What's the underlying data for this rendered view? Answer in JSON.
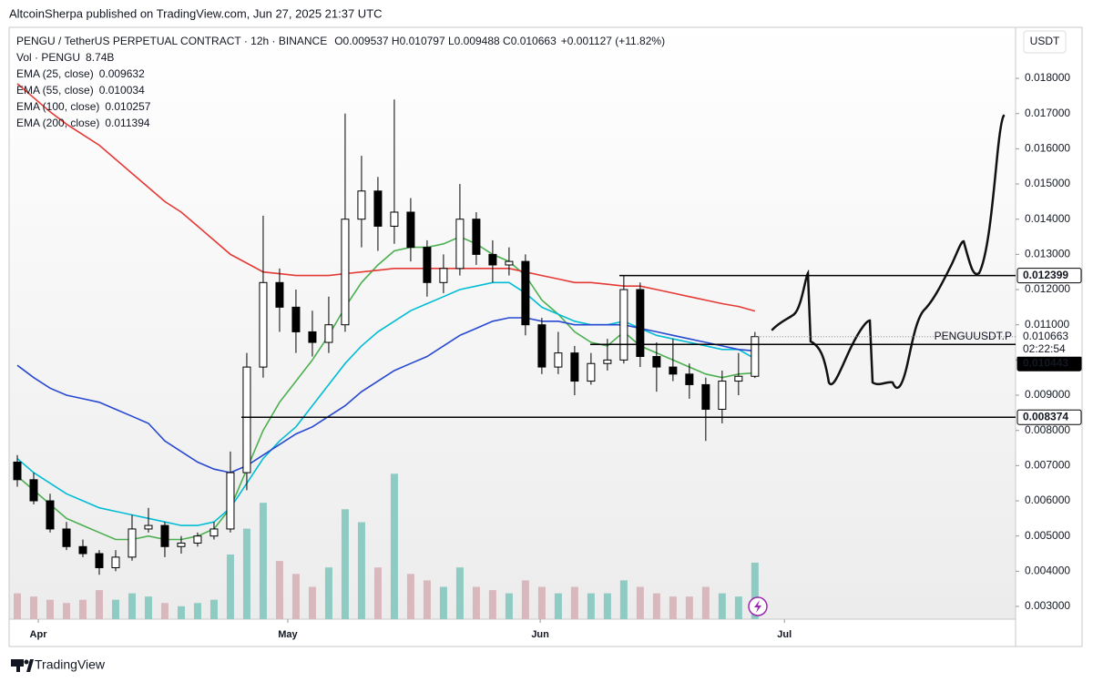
{
  "header": "AltcoinSherpa published on TradingView.com, Jun 27, 2025 21:37 UTC",
  "footer": "TradingView",
  "chart_data": {
    "type": "candlestick",
    "symbol_line": "PENGU / TetherUS PERPETUAL CONTRACT · 12h · BINANCE",
    "ohlc_line": "O0.009537 H0.010797 L0.009488 C0.010663",
    "change_line": "+0.001127 (+11.82%)",
    "volume_name": "Vol · PENGU",
    "volume_label": "8.74B",
    "currency": "USDT",
    "up_color": "#ffffff",
    "down_color": "#000000",
    "volume_up_color": "#8ecbc3",
    "volume_down_color": "#d9b8bd",
    "categories": [
      null,
      null,
      null,
      null,
      null,
      null,
      null,
      null,
      null,
      null,
      null,
      null,
      null,
      null,
      null,
      null,
      null,
      null,
      null,
      null,
      null,
      null,
      null,
      null,
      null,
      null,
      null,
      null,
      null,
      null,
      null,
      null,
      null,
      null,
      null,
      null,
      null,
      null,
      null,
      null,
      null,
      null,
      null,
      null,
      null,
      null
    ],
    "open": [
      0.0071,
      0.0066,
      0.006,
      0.0052,
      0.0047,
      0.0045,
      0.0041,
      0.0044,
      0.0052,
      0.0053,
      0.0047,
      0.0048,
      0.005,
      0.0052,
      0.0068,
      0.0098,
      0.0122,
      0.0115,
      0.0108,
      0.0105,
      0.011,
      0.014,
      0.0148,
      0.0138,
      0.0142,
      0.0132,
      0.0122,
      0.0126,
      0.014,
      0.013,
      0.0127,
      0.0128,
      0.011,
      0.0098,
      0.0102,
      0.0094,
      0.0099,
      0.01,
      0.012,
      0.0101,
      0.0098,
      0.0096,
      0.0093,
      0.0086,
      0.0094,
      0.009537
    ],
    "high": [
      0.0073,
      0.0068,
      0.0062,
      0.0054,
      0.0049,
      0.0046,
      0.0046,
      0.0056,
      0.0058,
      0.0054,
      0.005,
      0.0051,
      0.0054,
      0.0074,
      0.0102,
      0.0141,
      0.0126,
      0.012,
      0.0114,
      0.0118,
      0.017,
      0.0158,
      0.0152,
      0.0174,
      0.0146,
      0.0134,
      0.013,
      0.015,
      0.0142,
      0.0134,
      0.0132,
      0.013,
      0.0112,
      0.0108,
      0.0104,
      0.0102,
      0.0106,
      0.0124,
      0.0122,
      0.0105,
      0.0106,
      0.0099,
      0.0095,
      0.0097,
      0.0102,
      0.010797
    ],
    "low": [
      0.0064,
      0.0059,
      0.0051,
      0.0046,
      0.0044,
      0.0039,
      0.004,
      0.0043,
      0.0051,
      0.0044,
      0.0045,
      0.0047,
      0.0049,
      0.0051,
      0.0063,
      0.0095,
      0.0108,
      0.0102,
      0.0101,
      0.0102,
      0.0108,
      0.0132,
      0.0131,
      0.0133,
      0.0128,
      0.0118,
      0.0119,
      0.0124,
      0.0127,
      0.0122,
      0.0124,
      0.0107,
      0.0096,
      0.0096,
      0.009,
      0.0093,
      0.0097,
      0.0099,
      0.0098,
      0.0091,
      0.0094,
      0.0089,
      0.0077,
      0.0082,
      0.009,
      0.009488
    ],
    "close": [
      0.0066,
      0.006,
      0.0052,
      0.0047,
      0.0045,
      0.0041,
      0.0044,
      0.0052,
      0.0053,
      0.0047,
      0.0048,
      0.005,
      0.0052,
      0.0068,
      0.0098,
      0.0122,
      0.0115,
      0.0108,
      0.0105,
      0.011,
      0.014,
      0.0148,
      0.0138,
      0.0142,
      0.0132,
      0.0122,
      0.0126,
      0.014,
      0.013,
      0.0127,
      0.0128,
      0.011,
      0.0098,
      0.0102,
      0.0094,
      0.0099,
      0.01,
      0.012,
      0.0101,
      0.0098,
      0.0096,
      0.0093,
      0.0086,
      0.0094,
      0.009537,
      0.010663
    ],
    "volume": [
      4,
      3.5,
      3,
      2.5,
      3,
      4.5,
      3,
      4,
      3.5,
      2.5,
      2,
      2.5,
      3,
      10,
      14,
      18,
      9,
      7,
      5,
      8,
      17,
      15,
      8,
      22.5,
      7,
      6,
      5,
      8,
      5,
      4.5,
      4,
      6,
      5,
      4,
      5,
      4,
      4,
      6,
      5,
      4,
      3.5,
      3.5,
      5,
      4,
      3.5,
      8.74
    ],
    "series": [
      {
        "name": "EMA (25, close)",
        "legend_value": "0.009632",
        "color": "#4caf50",
        "values": [
          0.0067,
          0.0063,
          0.0059,
          0.0055,
          0.0053,
          0.0051,
          0.0049,
          0.0049,
          0.005,
          0.0049,
          0.0049,
          0.005,
          0.0052,
          0.0058,
          0.0069,
          0.008,
          0.0088,
          0.0094,
          0.01,
          0.0107,
          0.0115,
          0.0122,
          0.0127,
          0.0131,
          0.0132,
          0.0132,
          0.0133,
          0.0135,
          0.0133,
          0.013,
          0.0128,
          0.0124,
          0.0117,
          0.0113,
          0.0108,
          0.0105,
          0.0104,
          0.0108,
          0.0104,
          0.0102,
          0.01,
          0.0098,
          0.0096,
          0.0095,
          0.0096,
          0.009632
        ]
      },
      {
        "name": "EMA (55, close)",
        "legend_value": "0.010034",
        "color": "#00bcd4",
        "values": [
          0.0072,
          0.0068,
          0.0065,
          0.0062,
          0.006,
          0.0058,
          0.0057,
          0.0056,
          0.0055,
          0.0054,
          0.0053,
          0.0053,
          0.0054,
          0.0058,
          0.0065,
          0.0072,
          0.0077,
          0.0081,
          0.0087,
          0.0093,
          0.0099,
          0.0104,
          0.0108,
          0.0111,
          0.0114,
          0.0116,
          0.0118,
          0.012,
          0.0121,
          0.0122,
          0.0122,
          0.0119,
          0.0115,
          0.0113,
          0.0111,
          0.011,
          0.011,
          0.0111,
          0.0109,
          0.0107,
          0.0106,
          0.0105,
          0.0104,
          0.0103,
          0.0103,
          0.010034
        ]
      },
      {
        "name": "EMA (100, close)",
        "legend_value": "0.010257",
        "color": "#2748d0",
        "values": [
          0.00985,
          0.0095,
          0.0092,
          0.009,
          0.0089,
          0.0088,
          0.0086,
          0.0084,
          0.0082,
          0.0077,
          0.0074,
          0.0071,
          0.0069,
          0.0068,
          0.007,
          0.0073,
          0.0076,
          0.0079,
          0.0081,
          0.0084,
          0.0087,
          0.0091,
          0.0094,
          0.0097,
          0.0099,
          0.0101,
          0.0104,
          0.0107,
          0.0109,
          0.0111,
          0.0112,
          0.0112,
          0.0111,
          0.0111,
          0.011,
          0.011,
          0.011,
          0.011,
          0.0109,
          0.0108,
          0.0107,
          0.0106,
          0.0105,
          0.0104,
          0.0103,
          0.010257
        ]
      },
      {
        "name": "EMA (200, close)",
        "legend_value": "0.011394",
        "color": "#e53935",
        "values": [
          0.01785,
          0.01745,
          0.01705,
          0.0167,
          0.0164,
          0.0161,
          0.0157,
          0.0153,
          0.0149,
          0.0145,
          0.0142,
          0.0138,
          0.0134,
          0.013,
          0.01275,
          0.0125,
          0.01245,
          0.0124,
          0.0124,
          0.0124,
          0.01245,
          0.0125,
          0.01255,
          0.0126,
          0.0126,
          0.0126,
          0.0126,
          0.0126,
          0.0126,
          0.0126,
          0.0126,
          0.0125,
          0.0124,
          0.0123,
          0.0122,
          0.0122,
          0.01215,
          0.0121,
          0.0121,
          0.012,
          0.0119,
          0.0118,
          0.0117,
          0.0116,
          0.01152,
          0.01139
        ]
      }
    ],
    "xlim": [
      -0.5,
      60.9
    ],
    "xticks": [
      {
        "value": 1.28,
        "label": "Apr"
      },
      {
        "value": 16.5,
        "label": "May"
      },
      {
        "value": 31.9,
        "label": "Jun"
      },
      {
        "value": 46.8,
        "label": "Jul"
      }
    ],
    "ylim": [
      0.002638,
      0.01945
    ],
    "yticks": [
      {
        "value": 0.003,
        "label": "0.003000"
      },
      {
        "value": 0.004,
        "label": "0.004000"
      },
      {
        "value": 0.005,
        "label": "0.005000"
      },
      {
        "value": 0.006,
        "label": "0.006000"
      },
      {
        "value": 0.007,
        "label": "0.007000"
      },
      {
        "value": 0.008,
        "label": "0.008000"
      },
      {
        "value": 0.009,
        "label": "0.009000"
      },
      {
        "value": 0.01,
        "label": "0.010000"
      },
      {
        "value": 0.011,
        "label": "0.011000"
      },
      {
        "value": 0.012,
        "label": "0.012000"
      },
      {
        "value": 0.013,
        "label": "0.013000"
      },
      {
        "value": 0.014,
        "label": "0.014000"
      },
      {
        "value": 0.015,
        "label": "0.015000"
      },
      {
        "value": 0.016,
        "label": "0.016000"
      },
      {
        "value": 0.017,
        "label": "0.017000"
      },
      {
        "value": 0.018,
        "label": "0.018000"
      }
    ],
    "levels": [
      {
        "value": 0.012399,
        "label": "0.012399"
      },
      {
        "value": 0.010443,
        "label": "0.010443"
      },
      {
        "value": 0.008374,
        "label": "0.008374"
      }
    ],
    "last_price": {
      "value": 0.010663,
      "label": "0.010663",
      "symbol": "PENGUUSDT.P",
      "countdown": "02:22:54"
    }
  }
}
